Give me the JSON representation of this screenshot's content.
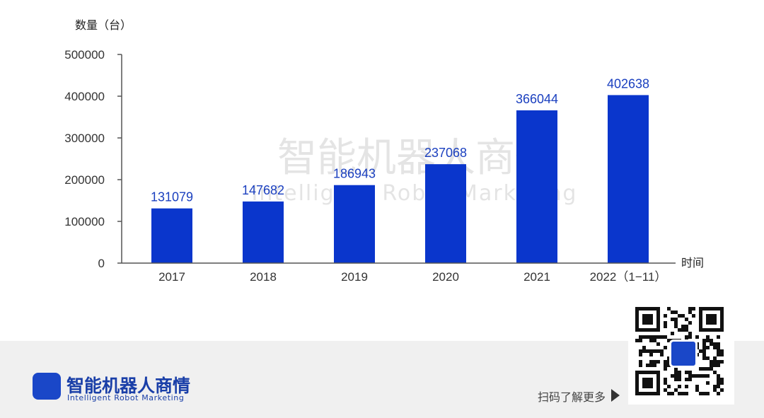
{
  "chart_data": {
    "type": "bar",
    "ylabel": "数量（台）",
    "xlabel": "时间",
    "categories": [
      "2017",
      "2018",
      "2019",
      "2020",
      "2021",
      "2022（1−11）"
    ],
    "values": [
      131079,
      147682,
      186943,
      237068,
      366044,
      402638
    ],
    "value_labels": [
      "131079",
      "147682",
      "186943",
      "237068",
      "366044",
      "402638"
    ],
    "ylim": [
      0,
      500000
    ],
    "yticks": [
      "0",
      "100000",
      "200000",
      "300000",
      "400000",
      "500000"
    ],
    "ytick_values": [
      0,
      100000,
      200000,
      300000,
      400000,
      500000
    ],
    "bar_color": "#0a36cc",
    "label_color": "#1a3fbf",
    "grid": false,
    "legend": "none"
  },
  "watermark": {
    "name": "智能机器人商情",
    "subtitle": "Intelligent Robot Marketing"
  },
  "footer": {
    "brand_name": "智能机器人商情",
    "brand_subtitle": "Intelligent Robot Marketing",
    "scan_text": "扫码了解更多",
    "accent": "#1a47c8"
  },
  "icons": {
    "arrow": "play-triangle-icon",
    "qr": "qr-code-icon",
    "logo": "brand-logo-icon"
  }
}
